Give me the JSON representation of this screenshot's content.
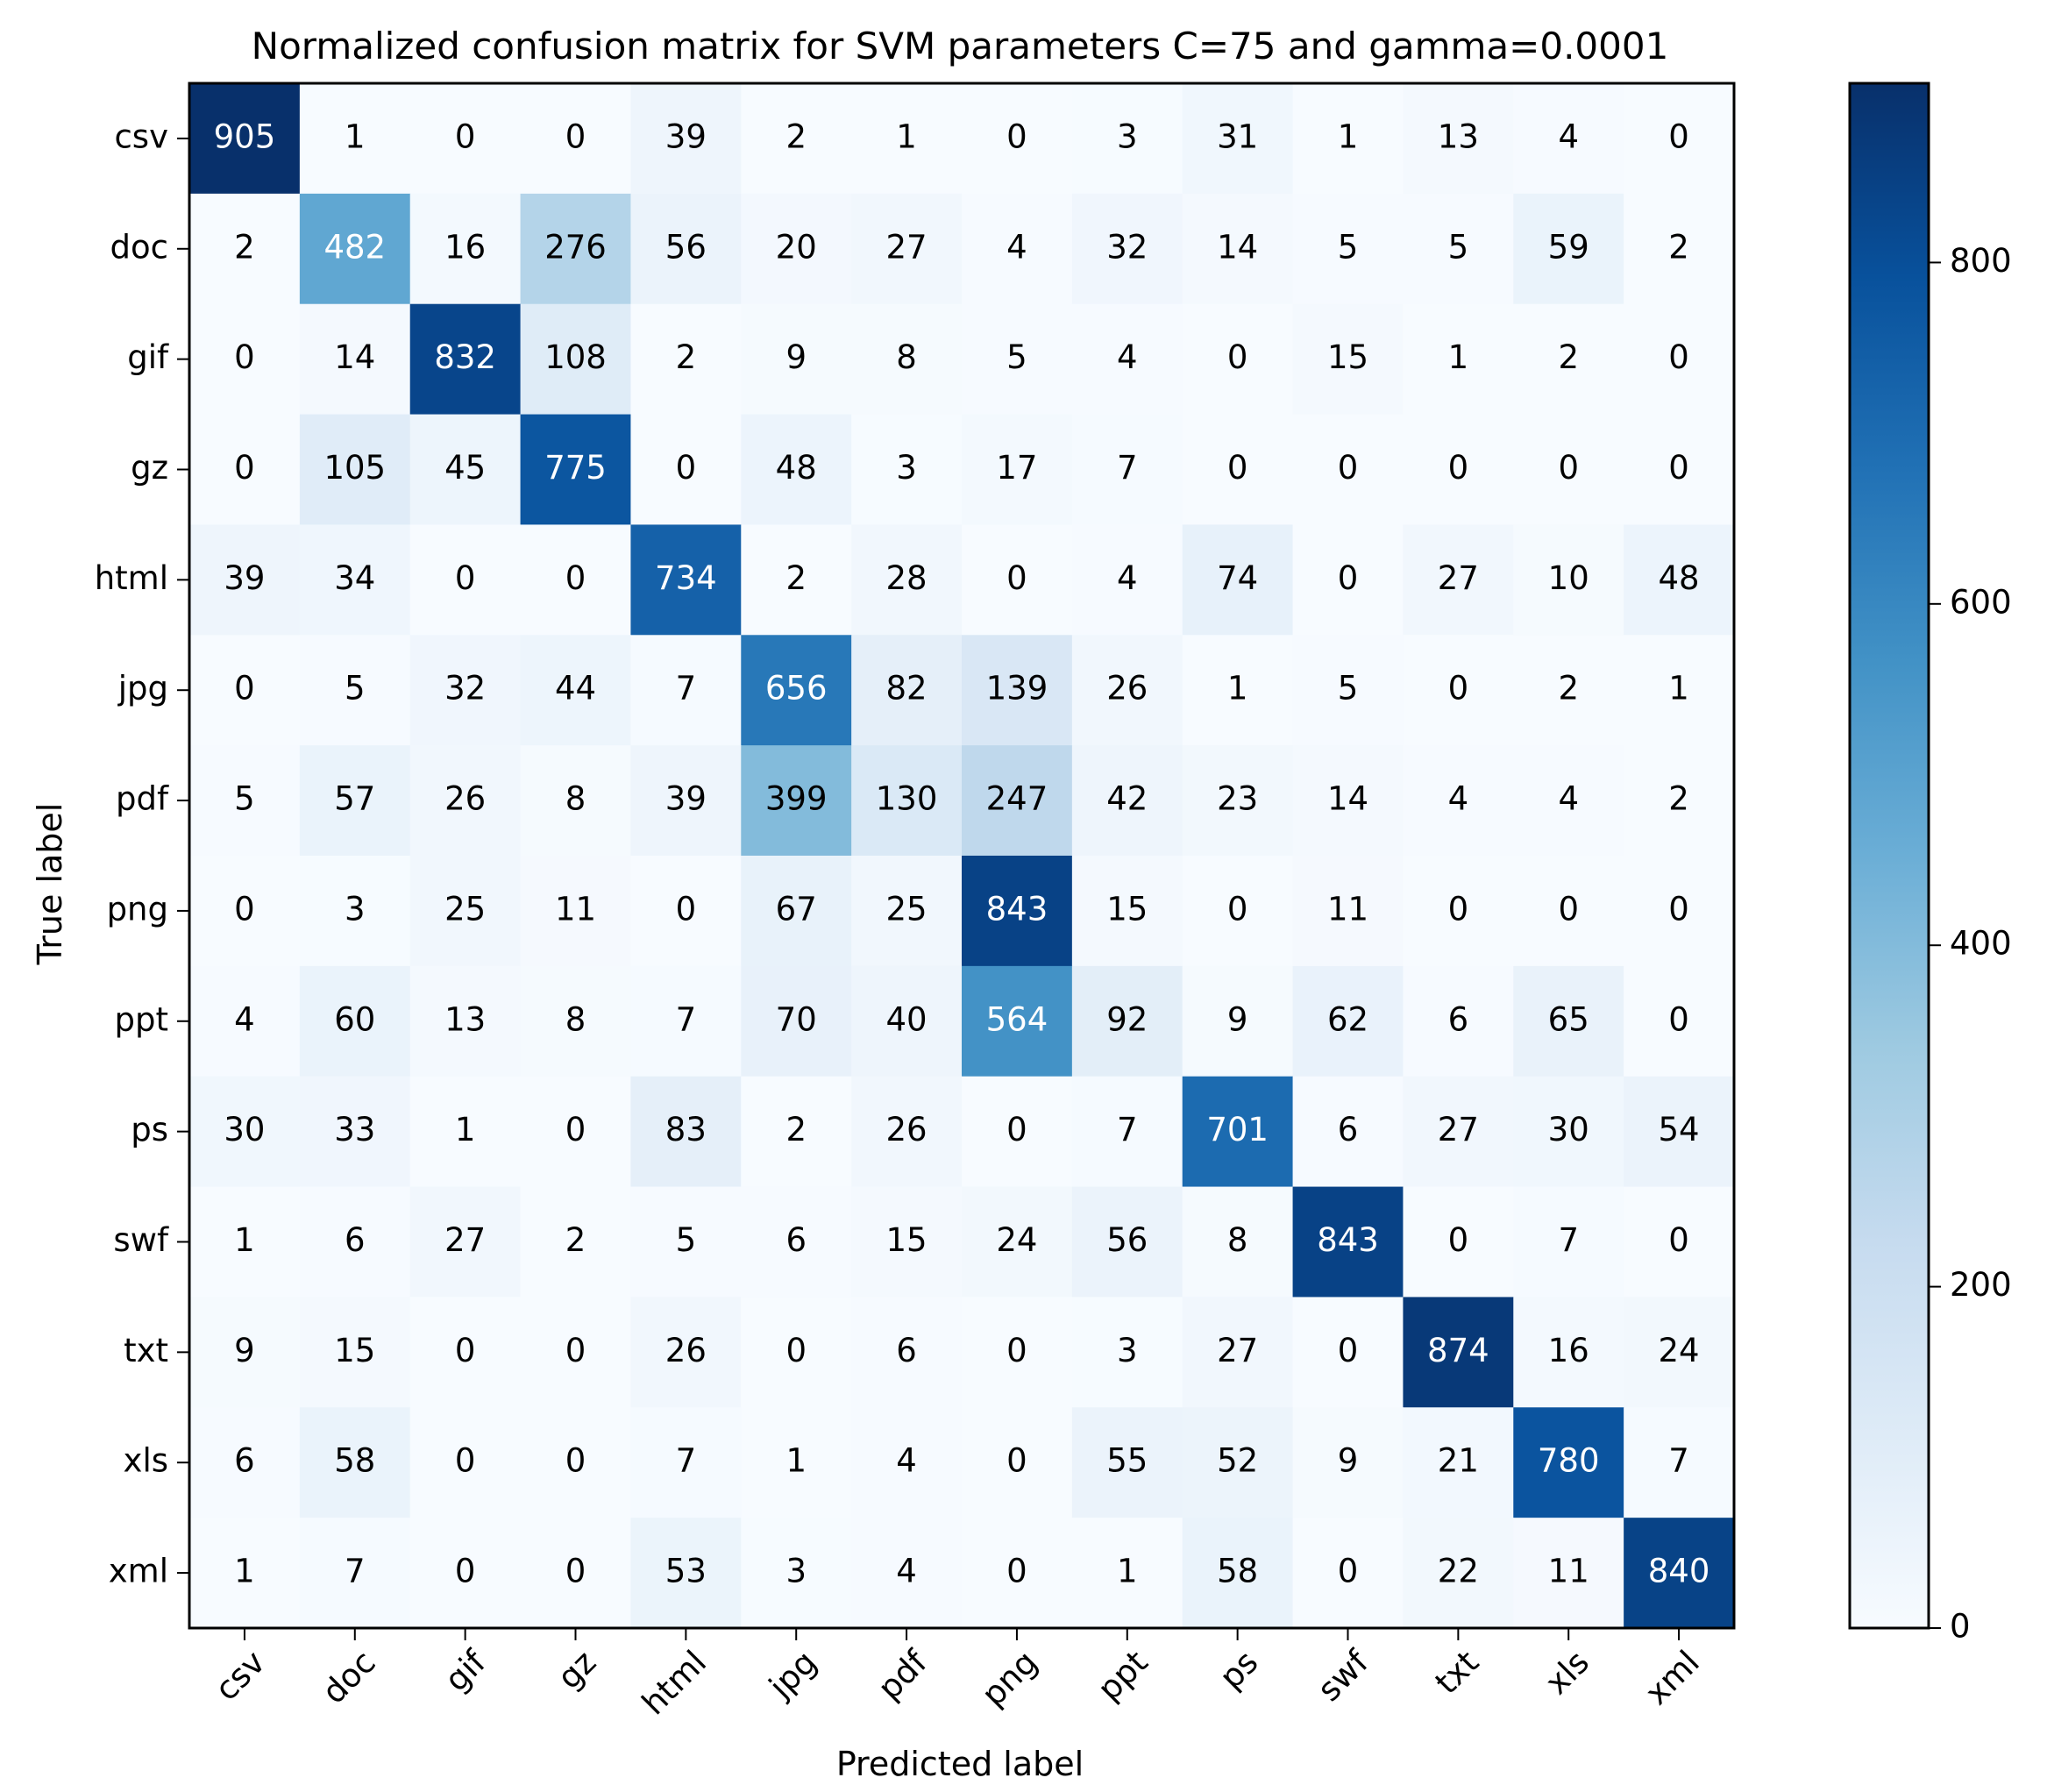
{
  "chart_data": {
    "type": "heatmap",
    "title": "Normalized confusion matrix for SVM parameters C=75 and gamma=0.0001",
    "xlabel": "Predicted label",
    "ylabel": "True label",
    "x_categories": [
      "csv",
      "doc",
      "gif",
      "gz",
      "html",
      "jpg",
      "pdf",
      "png",
      "ppt",
      "ps",
      "swf",
      "txt",
      "xls",
      "xml"
    ],
    "y_categories": [
      "csv",
      "doc",
      "gif",
      "gz",
      "html",
      "jpg",
      "pdf",
      "png",
      "ppt",
      "ps",
      "swf",
      "txt",
      "xls",
      "xml"
    ],
    "matrix": [
      [
        905,
        1,
        0,
        0,
        39,
        2,
        1,
        0,
        3,
        31,
        1,
        13,
        4,
        0
      ],
      [
        2,
        482,
        16,
        276,
        56,
        20,
        27,
        4,
        32,
        14,
        5,
        5,
        59,
        2
      ],
      [
        0,
        14,
        832,
        108,
        2,
        9,
        8,
        5,
        4,
        0,
        15,
        1,
        2,
        0
      ],
      [
        0,
        105,
        45,
        775,
        0,
        48,
        3,
        17,
        7,
        0,
        0,
        0,
        0,
        0
      ],
      [
        39,
        34,
        0,
        0,
        734,
        2,
        28,
        0,
        4,
        74,
        0,
        27,
        10,
        48
      ],
      [
        0,
        5,
        32,
        44,
        7,
        656,
        82,
        139,
        26,
        1,
        5,
        0,
        2,
        1
      ],
      [
        5,
        57,
        26,
        8,
        39,
        399,
        130,
        247,
        42,
        23,
        14,
        4,
        4,
        2
      ],
      [
        0,
        3,
        25,
        11,
        0,
        67,
        25,
        843,
        15,
        0,
        11,
        0,
        0,
        0
      ],
      [
        4,
        60,
        13,
        8,
        7,
        70,
        40,
        564,
        92,
        9,
        62,
        6,
        65,
        0
      ],
      [
        30,
        33,
        1,
        0,
        83,
        2,
        26,
        0,
        7,
        701,
        6,
        27,
        30,
        54
      ],
      [
        1,
        6,
        27,
        2,
        5,
        6,
        15,
        24,
        56,
        8,
        843,
        0,
        7,
        0
      ],
      [
        9,
        15,
        0,
        0,
        26,
        0,
        6,
        0,
        3,
        27,
        0,
        874,
        16,
        24
      ],
      [
        6,
        58,
        0,
        0,
        7,
        1,
        4,
        0,
        55,
        52,
        9,
        21,
        780,
        7
      ],
      [
        1,
        7,
        0,
        0,
        53,
        3,
        4,
        0,
        1,
        58,
        0,
        22,
        11,
        840
      ]
    ],
    "colorbar": {
      "min": 0,
      "max": 905,
      "ticks": [
        0,
        200,
        400,
        600,
        800
      ],
      "tick_labels": [
        "0",
        "200",
        "400",
        "600",
        "800"
      ]
    },
    "colormap": "Blues",
    "text_color_dark": "#000000",
    "text_color_light": "#ffffff"
  }
}
